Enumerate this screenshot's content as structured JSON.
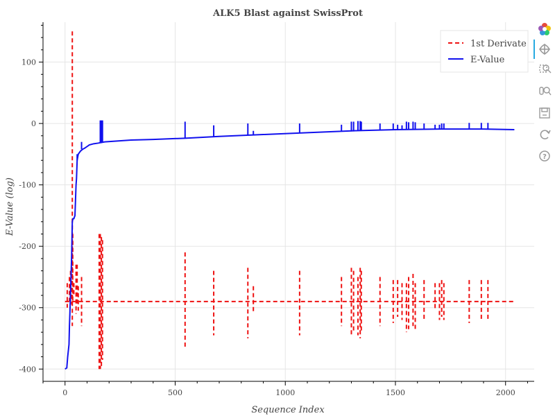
{
  "chart_data": {
    "type": "line",
    "title": "ALK5 Blast against SwissProt",
    "xlabel": "Sequence Index",
    "ylabel": "E-Value (log)",
    "xlim": [
      -100,
      2130
    ],
    "ylim": [
      -420,
      165
    ],
    "x_ticks": [
      0,
      500,
      1000,
      1500,
      2000
    ],
    "y_ticks": [
      100,
      0,
      -100,
      -200,
      -300,
      -400
    ],
    "grid": true,
    "legend_position": "top-right",
    "series": [
      {
        "name": "1st Derivate",
        "color": "#ee1111",
        "style": "dashed",
        "baseline": -290,
        "spikes": [
          [
            10,
            -260,
            -300
          ],
          [
            20,
            -250,
            -290
          ],
          [
            25,
            -240,
            -290
          ],
          [
            30,
            -245,
            -295
          ],
          [
            33,
            150,
            -330
          ],
          [
            35,
            -180,
            -290
          ],
          [
            40,
            -260,
            -280
          ],
          [
            50,
            -230,
            -310
          ],
          [
            55,
            -230,
            -295
          ],
          [
            60,
            -265,
            -305
          ],
          [
            75,
            -250,
            -330
          ],
          [
            155,
            -180,
            -400
          ],
          [
            160,
            -180,
            -400
          ],
          [
            165,
            -185,
            -395
          ],
          [
            170,
            -190,
            -385
          ],
          [
            545,
            -210,
            -365
          ],
          [
            675,
            -240,
            -345
          ],
          [
            830,
            -235,
            -350
          ],
          [
            855,
            -265,
            -310
          ],
          [
            1065,
            -240,
            -345
          ],
          [
            1255,
            -250,
            -330
          ],
          [
            1300,
            -235,
            -345
          ],
          [
            1310,
            -240,
            -340
          ],
          [
            1330,
            -250,
            -345
          ],
          [
            1340,
            -235,
            -350
          ],
          [
            1345,
            -240,
            -340
          ],
          [
            1430,
            -250,
            -330
          ],
          [
            1490,
            -255,
            -325
          ],
          [
            1510,
            -255,
            -315
          ],
          [
            1530,
            -260,
            -320
          ],
          [
            1550,
            -260,
            -340
          ],
          [
            1560,
            -250,
            -335
          ],
          [
            1580,
            -245,
            -330
          ],
          [
            1590,
            -260,
            -335
          ],
          [
            1630,
            -255,
            -320
          ],
          [
            1680,
            -260,
            -305
          ],
          [
            1700,
            -260,
            -320
          ],
          [
            1710,
            -255,
            -315
          ],
          [
            1720,
            -260,
            -320
          ],
          [
            1835,
            -255,
            -325
          ],
          [
            1890,
            -255,
            -320
          ],
          [
            1920,
            -255,
            -320
          ]
        ]
      },
      {
        "name": "E-Value",
        "color": "#1111ee",
        "style": "solid",
        "x": [
          0,
          8,
          12,
          18,
          20,
          22,
          25,
          28,
          30,
          33,
          36,
          40,
          45,
          50,
          52,
          55,
          60,
          70,
          80,
          90,
          110,
          130,
          150,
          180,
          220,
          300,
          400,
          545,
          700,
          900,
          1100,
          1300,
          1500,
          1700,
          1900,
          2040
        ],
        "y": [
          -400,
          -398,
          -380,
          -360,
          -330,
          -310,
          -275,
          -240,
          -215,
          -160,
          -155,
          -155,
          -150,
          -100,
          -90,
          -60,
          -50,
          -45,
          -42,
          -40,
          -35,
          -33,
          -32,
          -30,
          -29,
          -27,
          -26,
          -24,
          -21,
          -18,
          -15,
          -12,
          -10,
          -9,
          -9,
          -10
        ],
        "spikes": [
          [
            55,
            -50,
            -60
          ],
          [
            75,
            -30,
            -42
          ],
          [
            160,
            5,
            -32
          ],
          [
            165,
            5,
            -32
          ],
          [
            170,
            5,
            -31
          ],
          [
            545,
            3,
            -24
          ],
          [
            675,
            -3,
            -21
          ],
          [
            830,
            0,
            -19
          ],
          [
            855,
            -12,
            -18
          ],
          [
            1065,
            0,
            -16
          ],
          [
            1255,
            -2,
            -13
          ],
          [
            1300,
            3,
            -13
          ],
          [
            1310,
            3,
            -13
          ],
          [
            1330,
            4,
            -12
          ],
          [
            1340,
            4,
            -12
          ],
          [
            1345,
            3,
            -12
          ],
          [
            1430,
            0,
            -11
          ],
          [
            1490,
            0,
            -11
          ],
          [
            1510,
            -2,
            -11
          ],
          [
            1530,
            -3,
            -10
          ],
          [
            1550,
            3,
            -10
          ],
          [
            1560,
            2,
            -10
          ],
          [
            1580,
            3,
            -10
          ],
          [
            1590,
            2,
            -10
          ],
          [
            1630,
            0,
            -10
          ],
          [
            1680,
            -2,
            -9
          ],
          [
            1700,
            -2,
            -9
          ],
          [
            1710,
            0,
            -9
          ],
          [
            1720,
            0,
            -9
          ],
          [
            1835,
            1,
            -9
          ],
          [
            1890,
            1,
            -9
          ],
          [
            1920,
            1,
            -9
          ]
        ]
      }
    ]
  },
  "toolbar": {
    "items": [
      {
        "name": "bokeh-logo-icon",
        "interactable": false
      },
      {
        "name": "pan-tool-icon",
        "interactable": true
      },
      {
        "name": "box-zoom-tool-icon",
        "interactable": true
      },
      {
        "name": "wheel-zoom-tool-icon",
        "interactable": true
      },
      {
        "name": "save-tool-icon",
        "interactable": true
      },
      {
        "name": "reset-tool-icon",
        "interactable": true
      },
      {
        "name": "help-tool-icon",
        "interactable": true
      }
    ]
  }
}
